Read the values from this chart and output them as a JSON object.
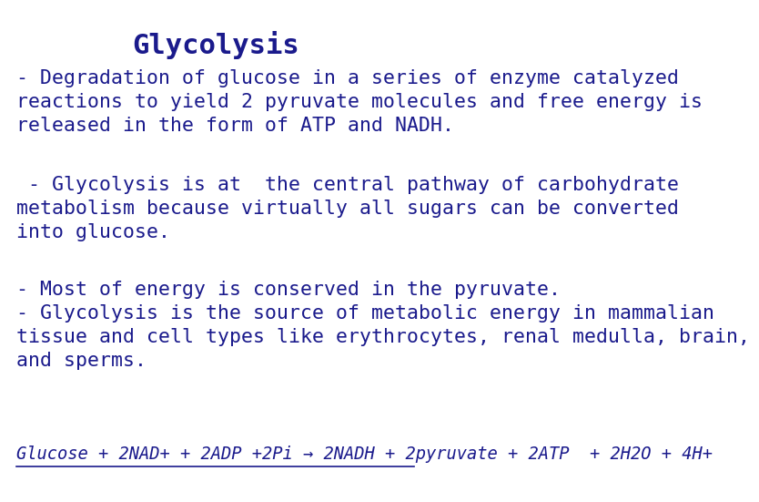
{
  "title": "Glycolysis",
  "title_color": "#1a1a8c",
  "title_fontsize": 22,
  "title_fontstyle": "bold",
  "body_color": "#1a1a8c",
  "body_fontsize": 15.5,
  "equation_color": "#1a1a8c",
  "equation_fontsize": 13.5,
  "background_color": "#ffffff",
  "paragraphs": [
    "- Degradation of glucose in a series of enzyme catalyzed\nreactions to yield 2 pyruvate molecules and free energy is\nreleased in the form of ATP and NADH.",
    " - Glycolysis is at  the central pathway of carbohydrate\nmetabolism because virtually all sugars can be converted\ninto glucose.",
    "- Most of energy is conserved in the pyruvate.",
    "- Glycolysis is the source of metabolic energy in mammalian\ntissue and cell types like erythrocytes, renal medulla, brain,\nand sperms."
  ],
  "equation": "Glucose + 2NAD+ + 2ADP +2Pi → 2NADH + 2pyruvate + 2ATP  + 2H2O + 4H+"
}
